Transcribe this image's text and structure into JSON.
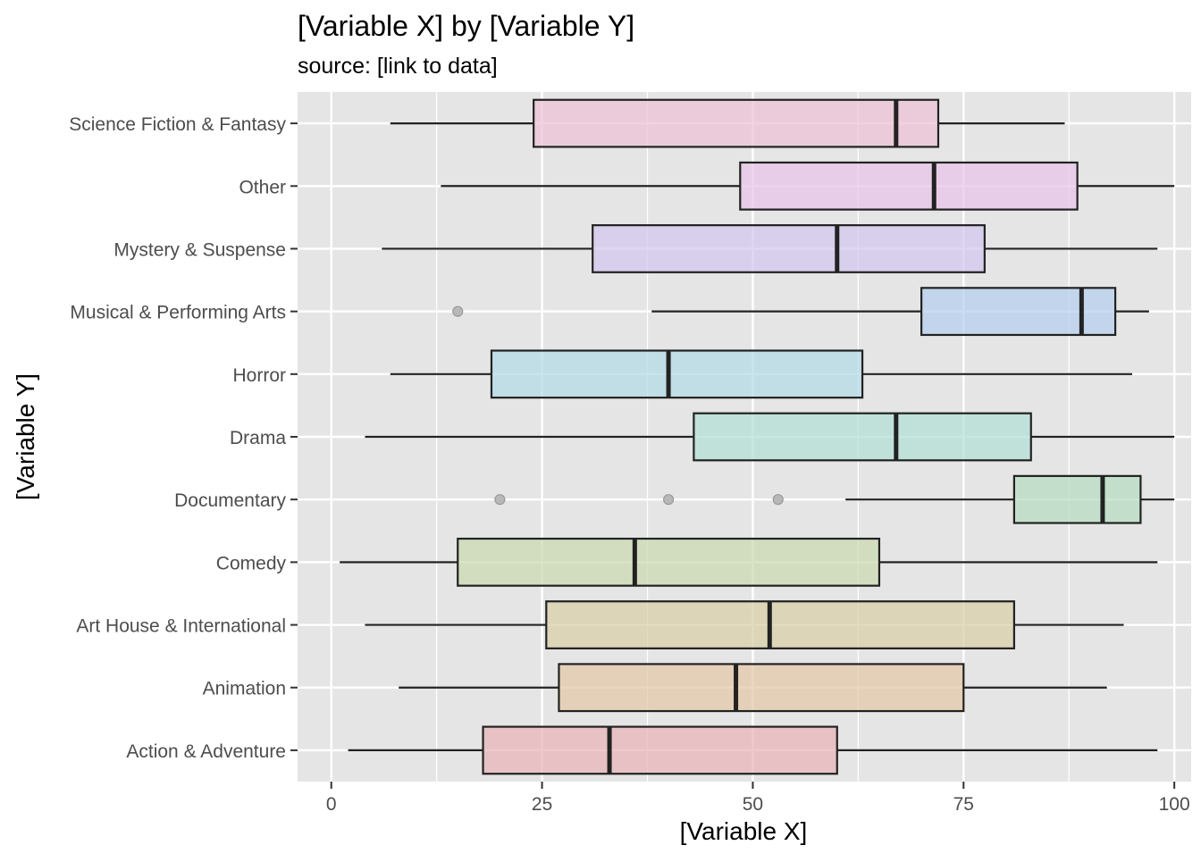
{
  "chart_data": {
    "type": "boxplot",
    "title": "[Variable X] by [Variable Y]",
    "subtitle": "source: [link to data]",
    "xlabel": "[Variable X]",
    "ylabel": "[Variable Y]",
    "xlim": [
      -4,
      102
    ],
    "xticks": [
      0,
      25,
      50,
      75,
      100
    ],
    "xtick_labels": [
      "0",
      "25",
      "50",
      "75",
      "100"
    ],
    "grid": true,
    "legend": "none",
    "panel_background": "#e5e5e5",
    "categories": [
      "Action & Adventure",
      "Animation",
      "Art House & International",
      "Comedy",
      "Documentary",
      "Drama",
      "Horror",
      "Musical & Performing Arts",
      "Mystery & Suspense",
      "Other",
      "Science Fiction & Fantasy"
    ],
    "boxes": [
      {
        "category": "Action & Adventure",
        "whisker_low": 2,
        "q1": 18,
        "median": 33,
        "q3": 60,
        "whisker_high": 98,
        "outliers": [],
        "color": "#e7b3b6"
      },
      {
        "category": "Animation",
        "whisker_low": 8,
        "q1": 27,
        "median": 48,
        "q3": 75,
        "whisker_high": 92,
        "outliers": [],
        "color": "#e3c7a6"
      },
      {
        "category": "Art House & International",
        "whisker_low": 4,
        "q1": 25.5,
        "median": 52,
        "q3": 81,
        "whisker_high": 94,
        "outliers": [],
        "color": "#d8cfa6"
      },
      {
        "category": "Comedy",
        "whisker_low": 1,
        "q1": 15,
        "median": 36,
        "q3": 65,
        "whisker_high": 98,
        "outliers": [],
        "color": "#c9d9ae"
      },
      {
        "category": "Documentary",
        "whisker_low": 61,
        "q1": 81,
        "median": 91.5,
        "q3": 96,
        "whisker_high": 100,
        "outliers": [
          20,
          40,
          53
        ],
        "color": "#b5dcc0"
      },
      {
        "category": "Drama",
        "whisker_low": 4,
        "q1": 43,
        "median": 67,
        "q3": 83,
        "whisker_high": 100,
        "outliers": [],
        "color": "#b2dfd5"
      },
      {
        "category": "Horror",
        "whisker_low": 7,
        "q1": 19,
        "median": 40,
        "q3": 63,
        "whisker_high": 95,
        "outliers": [],
        "color": "#b3d9e6"
      },
      {
        "category": "Musical & Performing Arts",
        "whisker_low": 38,
        "q1": 70,
        "median": 89,
        "q3": 93,
        "whisker_high": 97,
        "outliers": [
          15
        ],
        "color": "#b4cfee"
      },
      {
        "category": "Mystery & Suspense",
        "whisker_low": 6,
        "q1": 31,
        "median": 60,
        "q3": 77.5,
        "whisker_high": 98,
        "outliers": [],
        "color": "#d3c6ef"
      },
      {
        "category": "Other",
        "whisker_low": 13,
        "q1": 48.5,
        "median": 71.5,
        "q3": 88.5,
        "whisker_high": 100,
        "outliers": [],
        "color": "#e8c3e9"
      },
      {
        "category": "Science Fiction & Fantasy",
        "whisker_low": 7,
        "q1": 24,
        "median": 67,
        "q3": 72,
        "whisker_high": 87,
        "outliers": [],
        "color": "#edc1d6"
      }
    ]
  }
}
